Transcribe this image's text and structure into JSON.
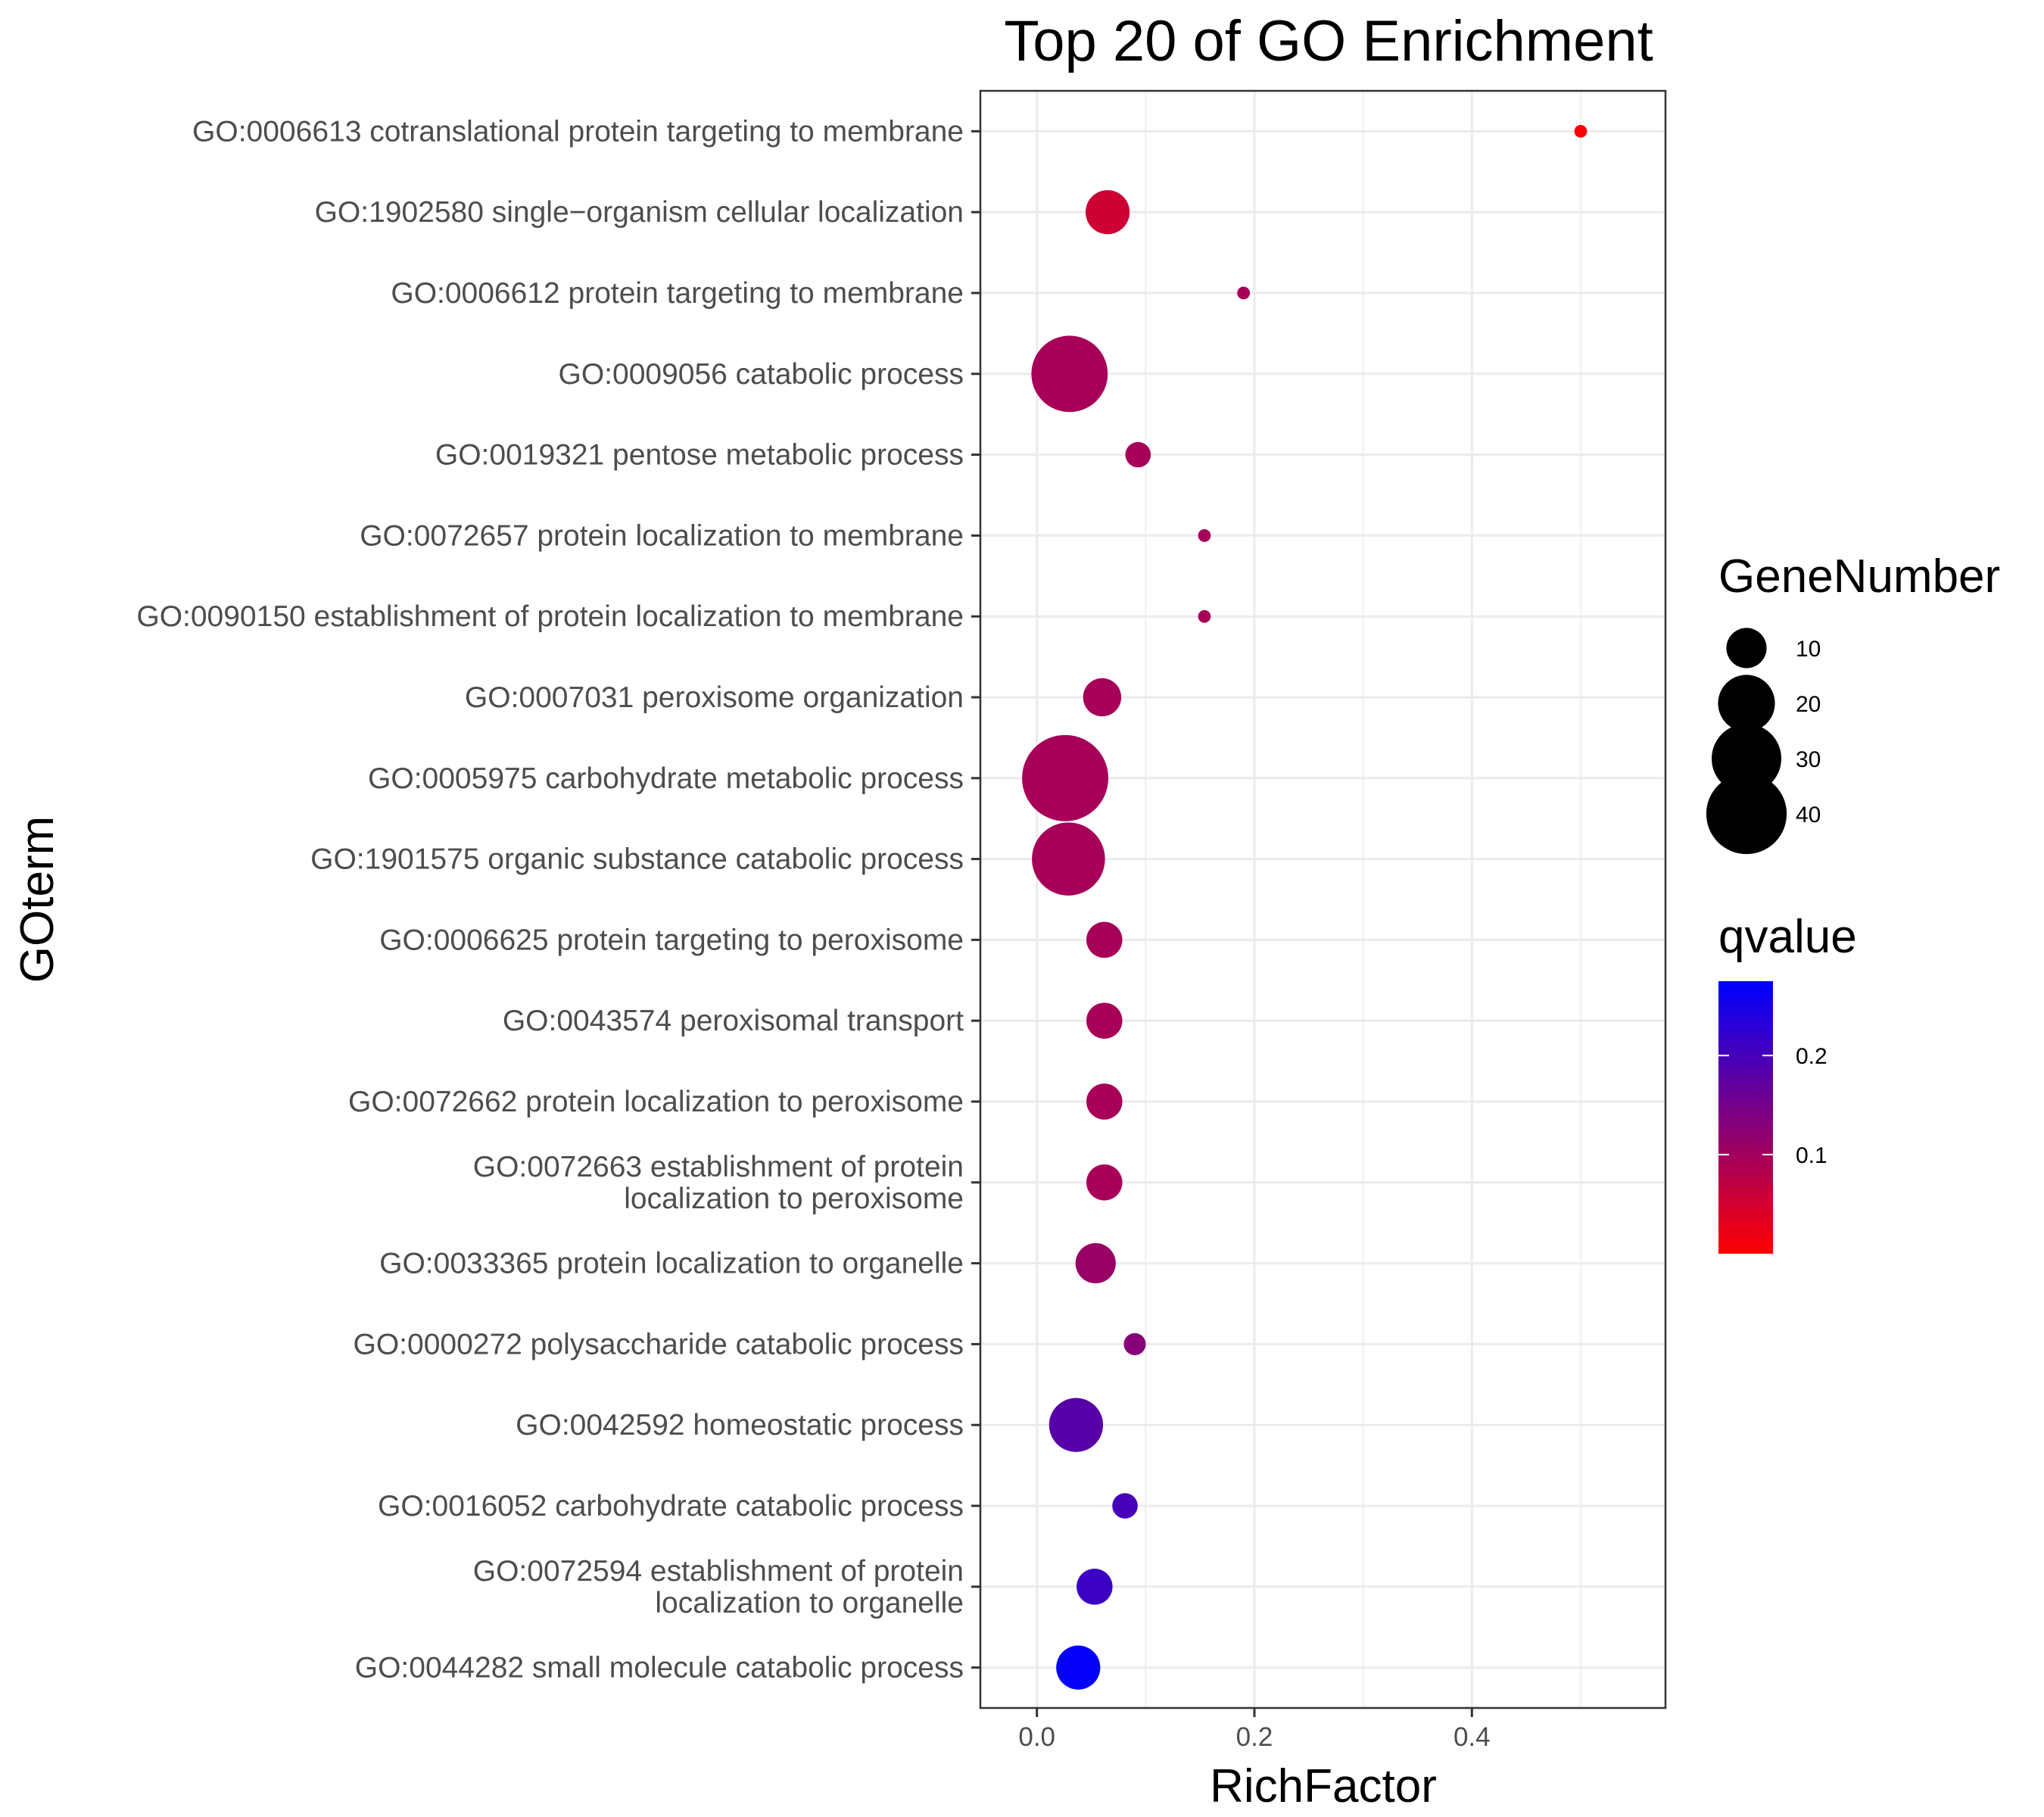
{
  "chart_data": {
    "type": "scatter",
    "title": "Top 20 of GO Enrichment",
    "xlabel": "RichFactor",
    "ylabel": "GOterm",
    "xlim": [
      -0.052,
      0.578
    ],
    "x_ticks": [
      0.0,
      0.2,
      0.4
    ],
    "x_tick_labels": [
      "0.0",
      "0.2",
      "0.4"
    ],
    "grid": true,
    "terms": [
      {
        "label": [
          "GO:0006613 cotranslational protein targeting to membrane"
        ],
        "rich_factor": 0.5,
        "gene_number": 1,
        "qvalue": 0.005
      },
      {
        "label": [
          "GO:1902580 single−organism cellular localization"
        ],
        "rich_factor": 0.065,
        "gene_number": 12,
        "qvalue": 0.055
      },
      {
        "label": [
          "GO:0006612 protein targeting to membrane"
        ],
        "rich_factor": 0.19,
        "gene_number": 1,
        "qvalue": 0.095
      },
      {
        "label": [
          "GO:0009056 catabolic process"
        ],
        "rich_factor": 0.03,
        "gene_number": 36,
        "qvalue": 0.095
      },
      {
        "label": [
          "GO:0019321 pentose metabolic process"
        ],
        "rich_factor": 0.093,
        "gene_number": 4,
        "qvalue": 0.095
      },
      {
        "label": [
          "GO:0072657 protein localization to membrane"
        ],
        "rich_factor": 0.154,
        "gene_number": 1,
        "qvalue": 0.095
      },
      {
        "label": [
          "GO:0090150 establishment of protein localization to membrane"
        ],
        "rich_factor": 0.154,
        "gene_number": 1,
        "qvalue": 0.095
      },
      {
        "label": [
          "GO:0007031 peroxisome organization"
        ],
        "rich_factor": 0.06,
        "gene_number": 9,
        "qvalue": 0.095
      },
      {
        "label": [
          "GO:0005975 carbohydrate metabolic process"
        ],
        "rich_factor": 0.026,
        "gene_number": 46,
        "qvalue": 0.095
      },
      {
        "label": [
          "GO:1901575 organic substance catabolic process"
        ],
        "rich_factor": 0.029,
        "gene_number": 33,
        "qvalue": 0.095
      },
      {
        "label": [
          "GO:0006625 protein targeting to peroxisome"
        ],
        "rich_factor": 0.062,
        "gene_number": 8,
        "qvalue": 0.095
      },
      {
        "label": [
          "GO:0043574 peroxisomal transport"
        ],
        "rich_factor": 0.062,
        "gene_number": 8,
        "qvalue": 0.095
      },
      {
        "label": [
          "GO:0072662 protein localization to peroxisome"
        ],
        "rich_factor": 0.062,
        "gene_number": 8,
        "qvalue": 0.095
      },
      {
        "label": [
          "GO:0072663 establishment of protein",
          "localization to peroxisome"
        ],
        "rich_factor": 0.062,
        "gene_number": 8,
        "qvalue": 0.095
      },
      {
        "label": [
          "GO:0033365 protein localization to organelle"
        ],
        "rich_factor": 0.054,
        "gene_number": 10,
        "qvalue": 0.11
      },
      {
        "label": [
          "GO:0000272 polysaccharide catabolic process"
        ],
        "rich_factor": 0.09,
        "gene_number": 3,
        "qvalue": 0.13
      },
      {
        "label": [
          "GO:0042592 homeostatic process"
        ],
        "rich_factor": 0.036,
        "gene_number": 18,
        "qvalue": 0.18
      },
      {
        "label": [
          "GO:0016052 carbohydrate catabolic process"
        ],
        "rich_factor": 0.081,
        "gene_number": 4,
        "qvalue": 0.2
      },
      {
        "label": [
          "GO:0072594 establishment of protein",
          "localization to organelle"
        ],
        "rich_factor": 0.053,
        "gene_number": 8,
        "qvalue": 0.21
      },
      {
        "label": [
          "GO:0044282 small molecule catabolic process"
        ],
        "rich_factor": 0.038,
        "gene_number": 12,
        "qvalue": 0.27
      }
    ],
    "size_legend": {
      "title": "GeneNumber",
      "items": [
        {
          "label": "10",
          "value": 10
        },
        {
          "label": "20",
          "value": 20
        },
        {
          "label": "30",
          "value": 30
        },
        {
          "label": "40",
          "value": 40
        }
      ]
    },
    "color_legend": {
      "title": "qvalue",
      "range": [
        0.0,
        0.275
      ],
      "low_color": "#ff0000",
      "high_color": "#0000ff",
      "ticks": [
        {
          "label": "0.1",
          "value": 0.1
        },
        {
          "label": "0.2",
          "value": 0.2
        }
      ]
    },
    "colors": {
      "grid": "#ebebeb",
      "panel_border": "#333333",
      "tick_text": "#4d4d4d"
    }
  }
}
